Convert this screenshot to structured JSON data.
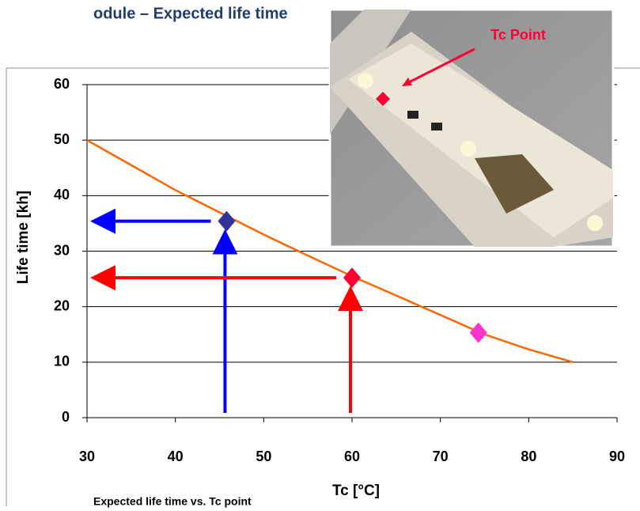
{
  "chart_data": {
    "type": "line",
    "title": "odule – Expected life time",
    "caption": "Expected life time vs. Tc point",
    "x_label": "Tc [°C]",
    "y_label": "Life time [kh]",
    "x": [
      30,
      35,
      40,
      45,
      50,
      55,
      60,
      65,
      70,
      75,
      80,
      85
    ],
    "series": [
      {
        "color": "#ff6600",
        "values": [
          50,
          45.5,
          41,
          37,
          33,
          29.2,
          25.5,
          22,
          18.5,
          15,
          12.3,
          10
        ]
      }
    ],
    "markers": [
      {
        "x": 45.8,
        "y": 35.4,
        "color": "#333399",
        "arrow_color": "#0000ff"
      },
      {
        "x": 60,
        "y": 25.2,
        "color": "#ff0033",
        "arrow_color": "#ff0000"
      },
      {
        "x": 74.3,
        "y": 15.3,
        "color": "#ff33cc"
      }
    ],
    "inset_label": {
      "text": "Tc Point",
      "color": "#ff0033"
    },
    "xlim": [
      30,
      90
    ],
    "ylim": [
      0,
      60
    ],
    "xticks": [
      30,
      40,
      50,
      60,
      70,
      80,
      90
    ],
    "yticks": [
      0,
      10,
      20,
      30,
      40,
      50,
      60
    ],
    "grid": true
  }
}
